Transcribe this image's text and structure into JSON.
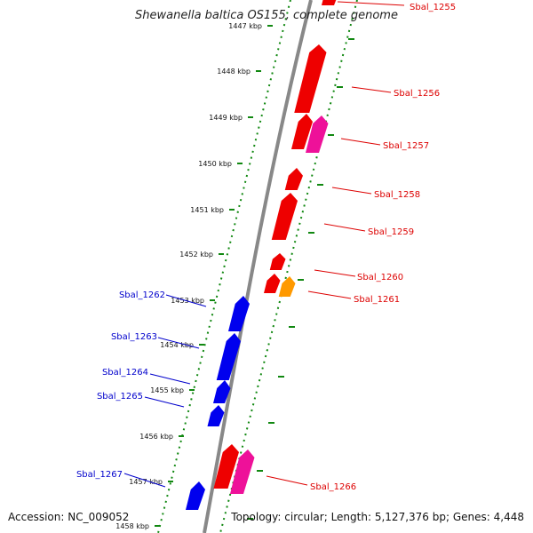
{
  "title": "Shewanella baltica OS155, complete genome",
  "footer": {
    "accession_label": "Accession:",
    "accession": "NC_009052",
    "topology_label": "Topology:",
    "topology": "circular",
    "length_label": "Length:",
    "length": "5,127,376 bp",
    "genes_label": "Genes:",
    "genes": "4,448"
  },
  "colors": {
    "forward_strand": "#ee0000",
    "forward_strand_alt": "#ee1199",
    "forward_strand_other": "#ff9900",
    "reverse_strand": "#0000ee",
    "tick_dots": "#118811",
    "backbone": "#888888"
  },
  "ticks": [
    "1447 kbp",
    "1448 kbp",
    "1449 kbp",
    "1450 kbp",
    "1451 kbp",
    "1452 kbp",
    "1453 kbp",
    "1454 kbp",
    "1455 kbp",
    "1456 kbp",
    "1457 kbp",
    "1458 kbp"
  ],
  "genes": [
    {
      "name": "Sbal_1255",
      "strand": "+",
      "color": "#ee0000"
    },
    {
      "name": "Sbal_1256",
      "strand": "+",
      "color": "#ee0000"
    },
    {
      "name": "Sbal_1257",
      "strand": "+",
      "color": "#ee1199"
    },
    {
      "name": "Sbal_1258",
      "strand": "+",
      "color": "#ee0000"
    },
    {
      "name": "Sbal_1259",
      "strand": "+",
      "color": "#ee0000"
    },
    {
      "name": "Sbal_1260",
      "strand": "+",
      "color": "#ee0000"
    },
    {
      "name": "Sbal_1261",
      "strand": "+",
      "color": "#ff9900"
    },
    {
      "name": "Sbal_1262",
      "strand": "-",
      "color": "#0000ee"
    },
    {
      "name": "Sbal_1263",
      "strand": "-",
      "color": "#0000ee"
    },
    {
      "name": "Sbal_1264",
      "strand": "-",
      "color": "#0000ee"
    },
    {
      "name": "Sbal_1265",
      "strand": "-",
      "color": "#0000ee"
    },
    {
      "name": "Sbal_1266",
      "strand": "+",
      "color": "#ee1199"
    },
    {
      "name": "Sbal_1267",
      "strand": "-",
      "color": "#0000ee"
    }
  ]
}
